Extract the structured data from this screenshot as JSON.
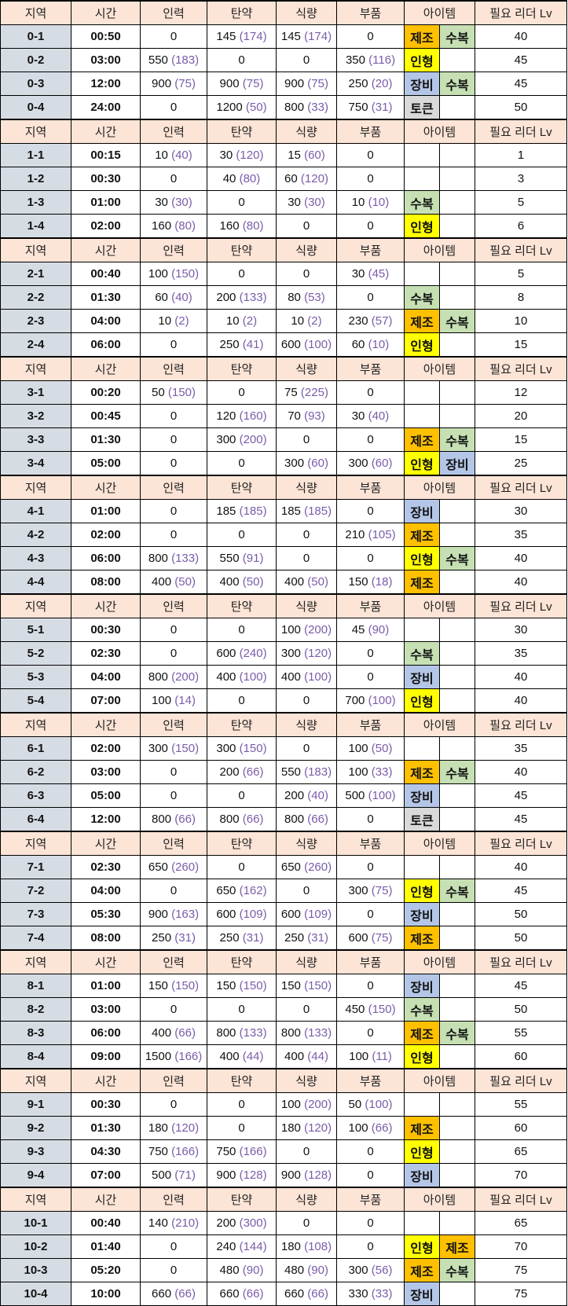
{
  "headers": {
    "region": "지역",
    "time": "시간",
    "manpower": "인력",
    "ammo": "탄약",
    "rations": "식량",
    "parts": "부품",
    "item": "아이템",
    "level": "필요 리더 Lv"
  },
  "item_colors": {
    "제조": "#ffc000",
    "수복": "#c6e0b4",
    "인형": "#ffff00",
    "장비": "#b4c6e7",
    "토큰": "#d9d9d9"
  },
  "paren_color": "#7a5ca8",
  "groups": [
    [
      [
        "0-1",
        "00:50",
        [
          "0",
          ""
        ],
        [
          "145",
          "174"
        ],
        [
          "145",
          "174"
        ],
        [
          "0",
          ""
        ],
        "제조",
        "수복",
        "40"
      ],
      [
        "0-2",
        "03:00",
        [
          "550",
          "183"
        ],
        [
          "0",
          ""
        ],
        [
          "0",
          ""
        ],
        [
          "350",
          "116"
        ],
        "인형",
        "",
        "45"
      ],
      [
        "0-3",
        "12:00",
        [
          "900",
          "75"
        ],
        [
          "900",
          "75"
        ],
        [
          "900",
          "75"
        ],
        [
          "250",
          "20"
        ],
        "장비",
        "수복",
        "45"
      ],
      [
        "0-4",
        "24:00",
        [
          "0",
          ""
        ],
        [
          "1200",
          "50"
        ],
        [
          "800",
          "33"
        ],
        [
          "750",
          "31"
        ],
        "토큰",
        "",
        "50"
      ]
    ],
    [
      [
        "1-1",
        "00:15",
        [
          "10",
          "40"
        ],
        [
          "30",
          "120"
        ],
        [
          "15",
          "60"
        ],
        [
          "0",
          ""
        ],
        "",
        "",
        "1"
      ],
      [
        "1-2",
        "00:30",
        [
          "0",
          ""
        ],
        [
          "40",
          "80"
        ],
        [
          "60",
          "120"
        ],
        [
          "0",
          ""
        ],
        "",
        "",
        "3"
      ],
      [
        "1-3",
        "01:00",
        [
          "30",
          "30"
        ],
        [
          "0",
          ""
        ],
        [
          "30",
          "30"
        ],
        [
          "10",
          "10"
        ],
        "수복",
        "",
        "5"
      ],
      [
        "1-4",
        "02:00",
        [
          "160",
          "80"
        ],
        [
          "160",
          "80"
        ],
        [
          "0",
          ""
        ],
        [
          "0",
          ""
        ],
        "인형",
        "",
        "6"
      ]
    ],
    [
      [
        "2-1",
        "00:40",
        [
          "100",
          "150"
        ],
        [
          "0",
          ""
        ],
        [
          "0",
          ""
        ],
        [
          "30",
          "45"
        ],
        "",
        "",
        "5"
      ],
      [
        "2-2",
        "01:30",
        [
          "60",
          "40"
        ],
        [
          "200",
          "133"
        ],
        [
          "80",
          "53"
        ],
        [
          "0",
          ""
        ],
        "수복",
        "",
        "8"
      ],
      [
        "2-3",
        "04:00",
        [
          "10",
          "2"
        ],
        [
          "10",
          "2"
        ],
        [
          "10",
          "2"
        ],
        [
          "230",
          "57"
        ],
        "제조",
        "수복",
        "10"
      ],
      [
        "2-4",
        "06:00",
        [
          "0",
          ""
        ],
        [
          "250",
          "41"
        ],
        [
          "600",
          "100"
        ],
        [
          "60",
          "10"
        ],
        "인형",
        "",
        "15"
      ]
    ],
    [
      [
        "3-1",
        "00:20",
        [
          "50",
          "150"
        ],
        [
          "0",
          ""
        ],
        [
          "75",
          "225"
        ],
        [
          "0",
          ""
        ],
        "",
        "",
        "12"
      ],
      [
        "3-2",
        "00:45",
        [
          "0",
          ""
        ],
        [
          "120",
          "160"
        ],
        [
          "70",
          "93"
        ],
        [
          "30",
          "40"
        ],
        "",
        "",
        "20"
      ],
      [
        "3-3",
        "01:30",
        [
          "0",
          ""
        ],
        [
          "300",
          "200"
        ],
        [
          "0",
          ""
        ],
        [
          "0",
          ""
        ],
        "제조",
        "수복",
        "15"
      ],
      [
        "3-4",
        "05:00",
        [
          "0",
          ""
        ],
        [
          "0",
          ""
        ],
        [
          "300",
          "60"
        ],
        [
          "300",
          "60"
        ],
        "인형",
        "장비",
        "25"
      ]
    ],
    [
      [
        "4-1",
        "01:00",
        [
          "0",
          ""
        ],
        [
          "185",
          "185"
        ],
        [
          "185",
          "185"
        ],
        [
          "0",
          ""
        ],
        "장비",
        "",
        "30"
      ],
      [
        "4-2",
        "02:00",
        [
          "0",
          ""
        ],
        [
          "0",
          ""
        ],
        [
          "0",
          ""
        ],
        [
          "210",
          "105"
        ],
        "제조",
        "",
        "35"
      ],
      [
        "4-3",
        "06:00",
        [
          "800",
          "133"
        ],
        [
          "550",
          "91"
        ],
        [
          "0",
          ""
        ],
        [
          "0",
          ""
        ],
        "인형",
        "수복",
        "40"
      ],
      [
        "4-4",
        "08:00",
        [
          "400",
          "50"
        ],
        [
          "400",
          "50"
        ],
        [
          "400",
          "50"
        ],
        [
          "150",
          "18"
        ],
        "제조",
        "",
        "40"
      ]
    ],
    [
      [
        "5-1",
        "00:30",
        [
          "0",
          ""
        ],
        [
          "0",
          ""
        ],
        [
          "100",
          "200"
        ],
        [
          "45",
          "90"
        ],
        "",
        "",
        "30"
      ],
      [
        "5-2",
        "02:30",
        [
          "0",
          ""
        ],
        [
          "600",
          "240"
        ],
        [
          "300",
          "120"
        ],
        [
          "0",
          ""
        ],
        "수복",
        "",
        "35"
      ],
      [
        "5-3",
        "04:00",
        [
          "800",
          "200"
        ],
        [
          "400",
          "100"
        ],
        [
          "400",
          "100"
        ],
        [
          "0",
          ""
        ],
        "장비",
        "",
        "40"
      ],
      [
        "5-4",
        "07:00",
        [
          "100",
          "14"
        ],
        [
          "0",
          ""
        ],
        [
          "0",
          ""
        ],
        [
          "700",
          "100"
        ],
        "인형",
        "",
        "40"
      ]
    ],
    [
      [
        "6-1",
        "02:00",
        [
          "300",
          "150"
        ],
        [
          "300",
          "150"
        ],
        [
          "0",
          ""
        ],
        [
          "100",
          "50"
        ],
        "",
        "",
        "35"
      ],
      [
        "6-2",
        "03:00",
        [
          "0",
          ""
        ],
        [
          "200",
          "66"
        ],
        [
          "550",
          "183"
        ],
        [
          "100",
          "33"
        ],
        "제조",
        "수복",
        "40"
      ],
      [
        "6-3",
        "05:00",
        [
          "0",
          ""
        ],
        [
          "0",
          ""
        ],
        [
          "200",
          "40"
        ],
        [
          "500",
          "100"
        ],
        "장비",
        "",
        "45"
      ],
      [
        "6-4",
        "12:00",
        [
          "800",
          "66"
        ],
        [
          "800",
          "66"
        ],
        [
          "800",
          "66"
        ],
        [
          "0",
          ""
        ],
        "토큰",
        "",
        "45"
      ]
    ],
    [
      [
        "7-1",
        "02:30",
        [
          "650",
          "260"
        ],
        [
          "0",
          ""
        ],
        [
          "650",
          "260"
        ],
        [
          "0",
          ""
        ],
        "",
        "",
        "40"
      ],
      [
        "7-2",
        "04:00",
        [
          "0",
          ""
        ],
        [
          "650",
          "162"
        ],
        [
          "0",
          ""
        ],
        [
          "300",
          "75"
        ],
        "인형",
        "수복",
        "45"
      ],
      [
        "7-3",
        "05:30",
        [
          "900",
          "163"
        ],
        [
          "600",
          "109"
        ],
        [
          "600",
          "109"
        ],
        [
          "0",
          ""
        ],
        "장비",
        "",
        "50"
      ],
      [
        "7-4",
        "08:00",
        [
          "250",
          "31"
        ],
        [
          "250",
          "31"
        ],
        [
          "250",
          "31"
        ],
        [
          "600",
          "75"
        ],
        "제조",
        "",
        "50"
      ]
    ],
    [
      [
        "8-1",
        "01:00",
        [
          "150",
          "150"
        ],
        [
          "150",
          "150"
        ],
        [
          "150",
          "150"
        ],
        [
          "0",
          ""
        ],
        "장비",
        "",
        "45"
      ],
      [
        "8-2",
        "03:00",
        [
          "0",
          ""
        ],
        [
          "0",
          ""
        ],
        [
          "0",
          ""
        ],
        [
          "450",
          "150"
        ],
        "수복",
        "",
        "50"
      ],
      [
        "8-3",
        "06:00",
        [
          "400",
          "66"
        ],
        [
          "800",
          "133"
        ],
        [
          "800",
          "133"
        ],
        [
          "0",
          ""
        ],
        "제조",
        "수복",
        "55"
      ],
      [
        "8-4",
        "09:00",
        [
          "1500",
          "166"
        ],
        [
          "400",
          "44"
        ],
        [
          "400",
          "44"
        ],
        [
          "100",
          "11"
        ],
        "인형",
        "",
        "60"
      ]
    ],
    [
      [
        "9-1",
        "00:30",
        [
          "0",
          ""
        ],
        [
          "0",
          ""
        ],
        [
          "100",
          "200"
        ],
        [
          "50",
          "100"
        ],
        "",
        "",
        "55"
      ],
      [
        "9-2",
        "01:30",
        [
          "180",
          "120"
        ],
        [
          "0",
          ""
        ],
        [
          "180",
          "120"
        ],
        [
          "100",
          "66"
        ],
        "제조",
        "",
        "60"
      ],
      [
        "9-3",
        "04:30",
        [
          "750",
          "166"
        ],
        [
          "750",
          "166"
        ],
        [
          "0",
          ""
        ],
        [
          "0",
          ""
        ],
        "인형",
        "",
        "65"
      ],
      [
        "9-4",
        "07:00",
        [
          "500",
          "71"
        ],
        [
          "900",
          "128"
        ],
        [
          "900",
          "128"
        ],
        [
          "0",
          ""
        ],
        "장비",
        "",
        "70"
      ]
    ],
    [
      [
        "10-1",
        "00:40",
        [
          "140",
          "210"
        ],
        [
          "200",
          "300"
        ],
        [
          "0",
          ""
        ],
        [
          "0",
          ""
        ],
        "",
        "",
        "65"
      ],
      [
        "10-2",
        "01:40",
        [
          "0",
          ""
        ],
        [
          "240",
          "144"
        ],
        [
          "180",
          "108"
        ],
        [
          "0",
          ""
        ],
        "인형",
        "제조",
        "70"
      ],
      [
        "10-3",
        "05:20",
        [
          "0",
          ""
        ],
        [
          "480",
          "90"
        ],
        [
          "480",
          "90"
        ],
        [
          "300",
          "56"
        ],
        "제조",
        "수복",
        "75"
      ],
      [
        "10-4",
        "10:00",
        [
          "660",
          "66"
        ],
        [
          "660",
          "66"
        ],
        [
          "660",
          "66"
        ],
        [
          "330",
          "33"
        ],
        "장비",
        "",
        "75"
      ]
    ]
  ]
}
